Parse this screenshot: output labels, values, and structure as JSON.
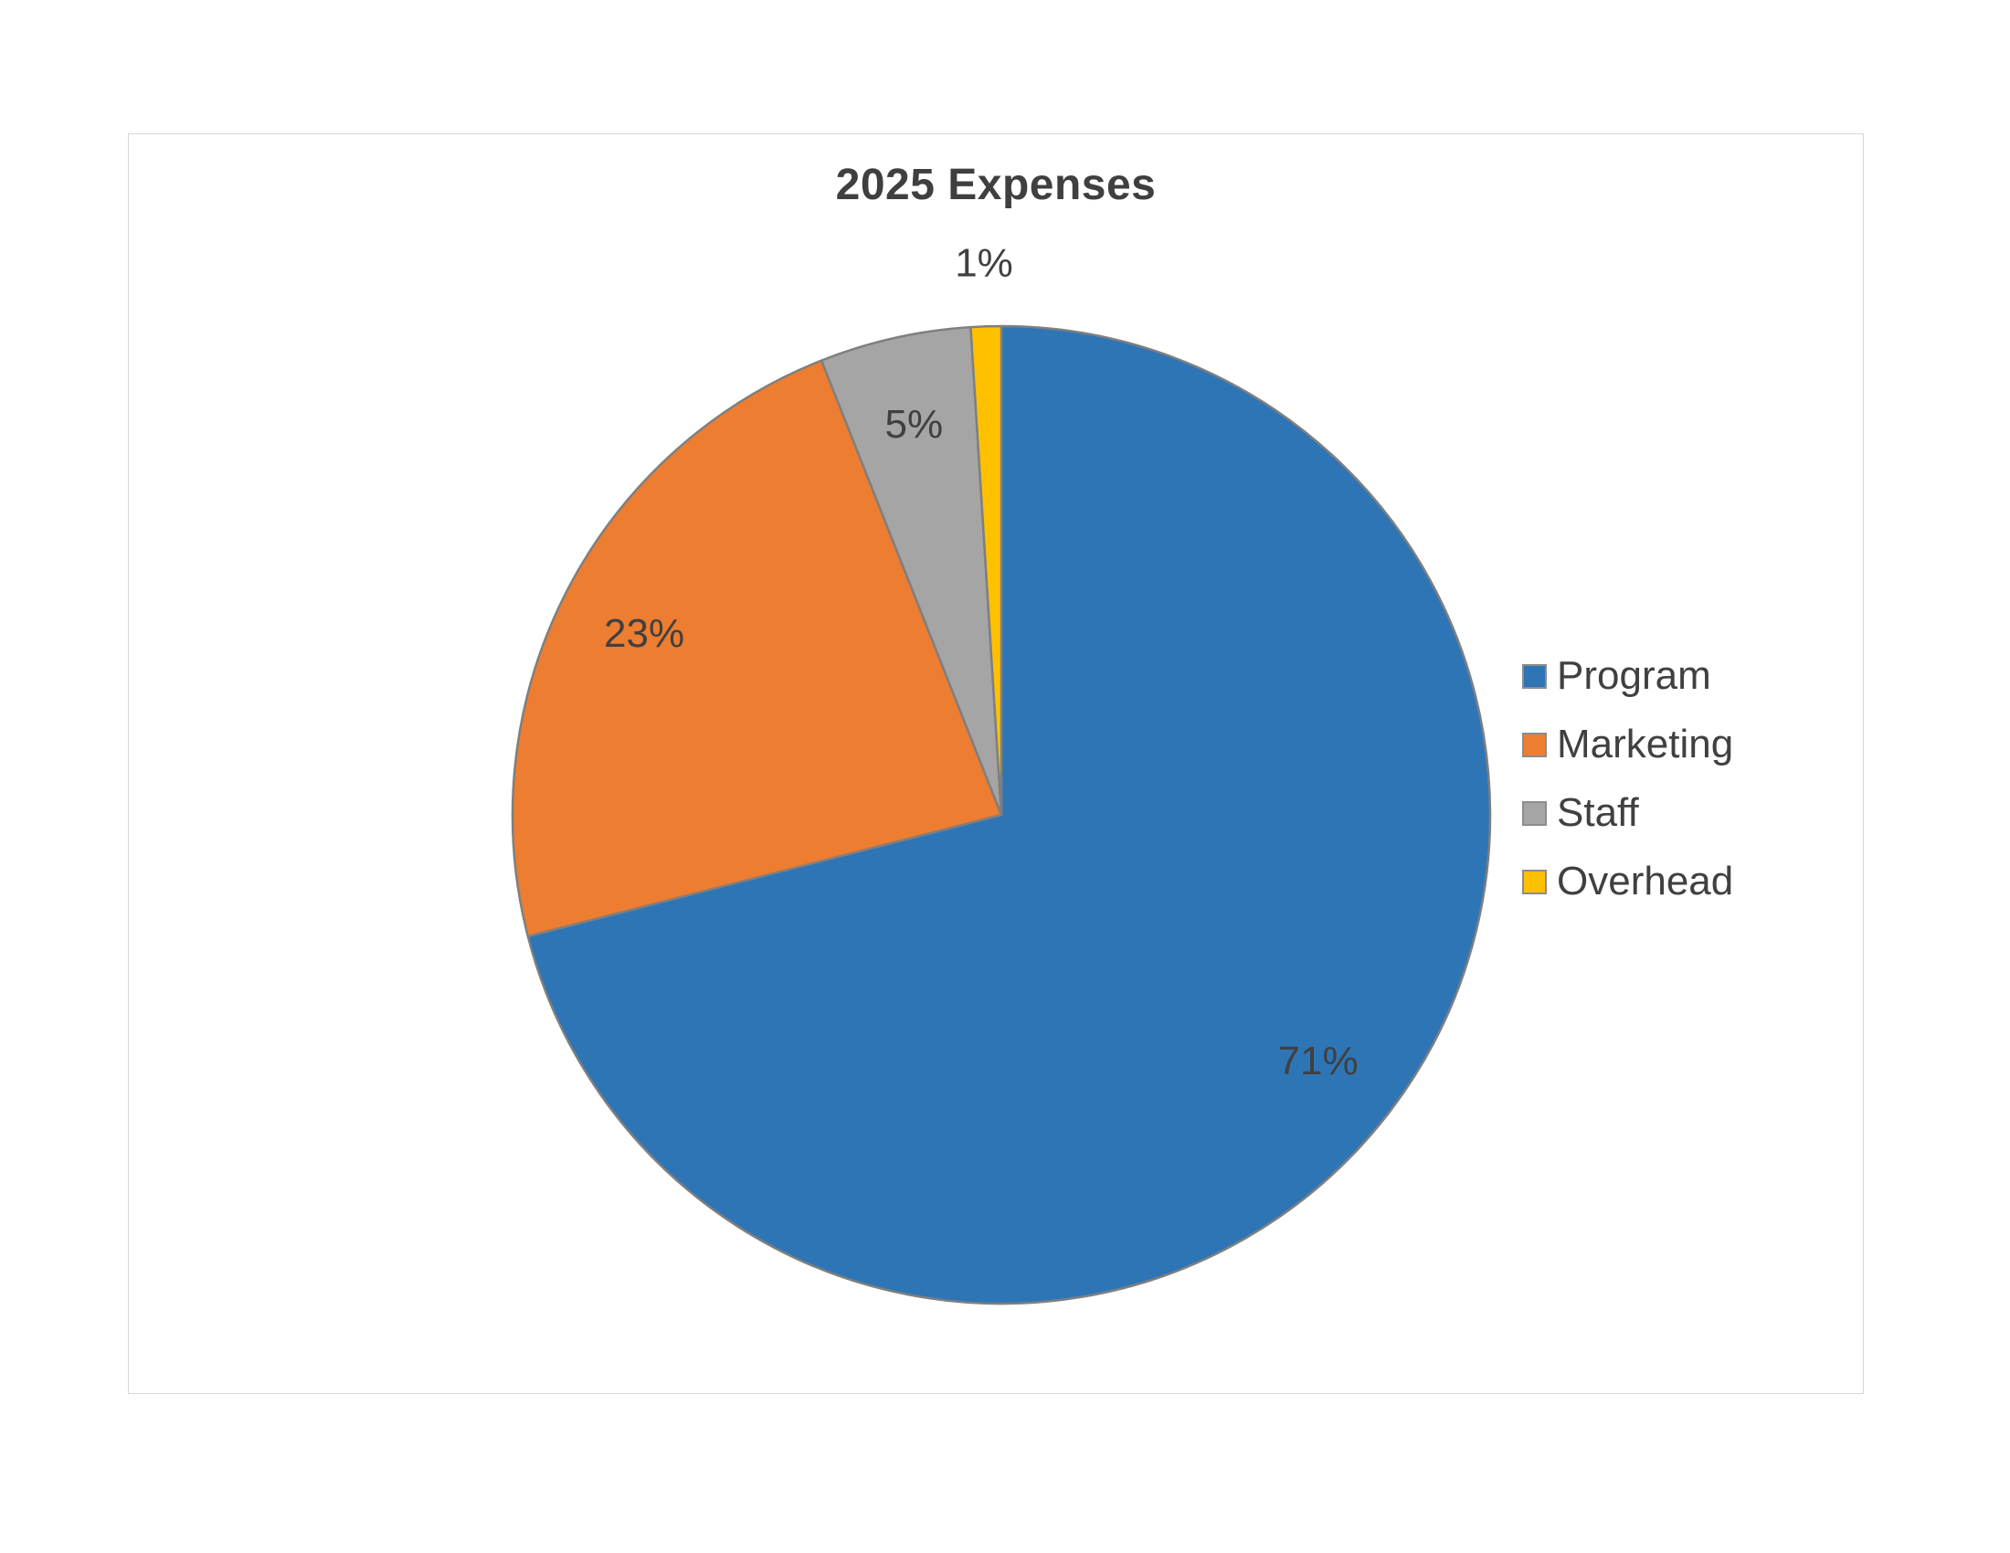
{
  "chart_data": {
    "type": "pie",
    "title": "2025 Expenses",
    "categories": [
      "Program",
      "Marketing",
      "Staff",
      "Overhead"
    ],
    "values": [
      71,
      23,
      5,
      1
    ],
    "slices": [
      {
        "label": "Program",
        "value": 71,
        "display": "71%",
        "color": "#2E75B6"
      },
      {
        "label": "Marketing",
        "value": 23,
        "display": "23%",
        "color": "#ED7D31"
      },
      {
        "label": "Staff",
        "value": 5,
        "display": "5%",
        "color": "#A5A5A5"
      },
      {
        "label": "Overhead",
        "value": 1,
        "display": "1%",
        "color": "#FFC000"
      }
    ],
    "start_angle_deg": 0,
    "direction": "clockwise",
    "data_labels": "percent",
    "legend_position": "right",
    "slice_border_color": "#7F7F7F",
    "title_color": "#3f3f3f",
    "label_color": "#404040",
    "frame_border_color": "#d6d6d6"
  }
}
